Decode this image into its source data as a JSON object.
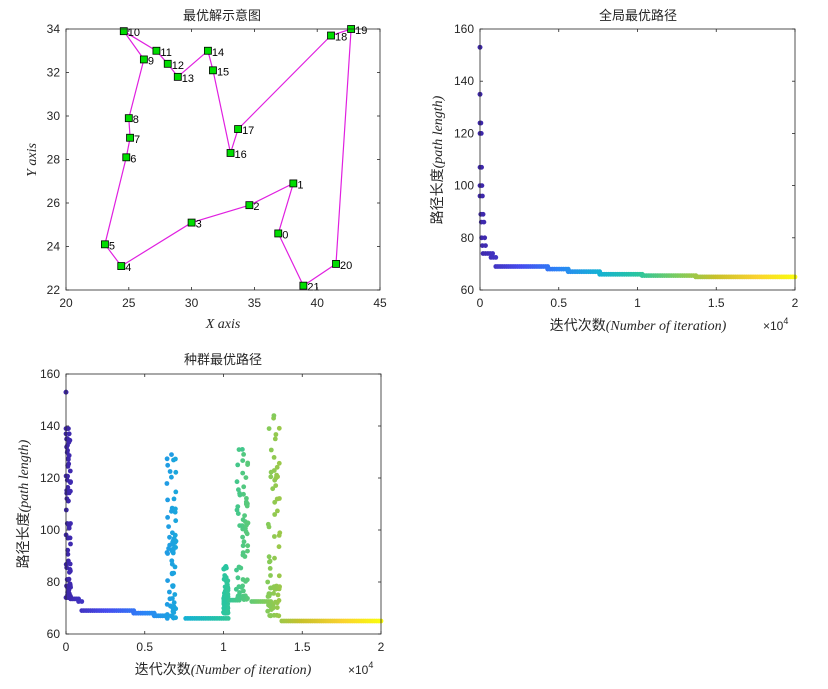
{
  "chart_data": [
    {
      "id": "route",
      "type": "scatter",
      "title": "最优解示意图",
      "xlabel": "X axis",
      "ylabel": "Y axis",
      "xlim": [
        20,
        45
      ],
      "ylim": [
        22,
        34
      ],
      "xticks": [
        20,
        25,
        30,
        35,
        40,
        45
      ],
      "yticks": [
        22,
        24,
        26,
        28,
        30,
        32,
        34
      ],
      "grid": false,
      "colors": {
        "route": "#e020e0",
        "node_fill": "#00dd00",
        "node_edge": "#000000"
      },
      "points": [
        {
          "label": "0",
          "x": 36.9,
          "y": 24.6
        },
        {
          "label": "1",
          "x": 38.1,
          "y": 26.9
        },
        {
          "label": "2",
          "x": 34.6,
          "y": 25.9
        },
        {
          "label": "3",
          "x": 30.0,
          "y": 25.1
        },
        {
          "label": "4",
          "x": 24.4,
          "y": 23.1
        },
        {
          "label": "5",
          "x": 23.1,
          "y": 24.1
        },
        {
          "label": "6",
          "x": 24.8,
          "y": 28.1
        },
        {
          "label": "7",
          "x": 25.1,
          "y": 29.0
        },
        {
          "label": "8",
          "x": 25.0,
          "y": 29.9
        },
        {
          "label": "9",
          "x": 26.2,
          "y": 32.6
        },
        {
          "label": "10",
          "x": 24.6,
          "y": 33.9
        },
        {
          "label": "11",
          "x": 27.2,
          "y": 33.0
        },
        {
          "label": "12",
          "x": 28.1,
          "y": 32.4
        },
        {
          "label": "13",
          "x": 28.9,
          "y": 31.8
        },
        {
          "label": "14",
          "x": 31.3,
          "y": 33.0
        },
        {
          "label": "15",
          "x": 31.7,
          "y": 32.1
        },
        {
          "label": "16",
          "x": 33.1,
          "y": 28.3
        },
        {
          "label": "17",
          "x": 33.7,
          "y": 29.4
        },
        {
          "label": "18",
          "x": 41.1,
          "y": 33.7
        },
        {
          "label": "19",
          "x": 42.7,
          "y": 34.0
        },
        {
          "label": "20",
          "x": 41.5,
          "y": 23.2
        },
        {
          "label": "21",
          "x": 38.9,
          "y": 22.2
        }
      ],
      "route_order": [
        "0",
        "1",
        "2",
        "3",
        "4",
        "5",
        "6",
        "7",
        "8",
        "9",
        "10",
        "11",
        "12",
        "13",
        "14",
        "15",
        "16",
        "17",
        "18",
        "19",
        "20",
        "21"
      ]
    },
    {
      "id": "global",
      "type": "scatter",
      "title": "全局最优路径",
      "xlabel_cn": "迭代次数",
      "xlabel_en": "(Number of iteration)",
      "ylabel_cn": "路径长度",
      "ylabel_en": "(path length)",
      "x_multiplier": "×10",
      "x_multiplier_exp": "4",
      "xlim": [
        0,
        20000
      ],
      "ylim": [
        60,
        160
      ],
      "xticks": [
        0,
        5000,
        10000,
        15000,
        20000
      ],
      "xticklabels": [
        "0",
        "0.5",
        "1",
        "1.5",
        "2"
      ],
      "yticks": [
        60,
        80,
        100,
        120,
        140,
        160
      ],
      "colormap": "parula",
      "segments": [
        {
          "x_start": 0,
          "x_end": 0,
          "y": 153
        },
        {
          "x_start": 0,
          "x_end": 0,
          "y": 135
        },
        {
          "x_start": 0,
          "x_end": 60,
          "y": 124
        },
        {
          "x_start": 0,
          "x_end": 80,
          "y": 120
        },
        {
          "x_start": 0,
          "x_end": 100,
          "y": 107
        },
        {
          "x_start": 0,
          "x_end": 120,
          "y": 100
        },
        {
          "x_start": 0,
          "x_end": 150,
          "y": 96
        },
        {
          "x_start": 50,
          "x_end": 200,
          "y": 89
        },
        {
          "x_start": 80,
          "x_end": 250,
          "y": 86
        },
        {
          "x_start": 100,
          "x_end": 300,
          "y": 80
        },
        {
          "x_start": 150,
          "x_end": 350,
          "y": 77
        },
        {
          "x_start": 200,
          "x_end": 800,
          "y": 74
        },
        {
          "x_start": 700,
          "x_end": 1000,
          "y": 72.5
        },
        {
          "x_start": 1000,
          "x_end": 4300,
          "y": 69
        },
        {
          "x_start": 4300,
          "x_end": 5600,
          "y": 68
        },
        {
          "x_start": 5600,
          "x_end": 7600,
          "y": 67
        },
        {
          "x_start": 7600,
          "x_end": 10300,
          "y": 66
        },
        {
          "x_start": 10300,
          "x_end": 13700,
          "y": 65.5
        },
        {
          "x_start": 13700,
          "x_end": 20000,
          "y": 65
        }
      ]
    },
    {
      "id": "population",
      "type": "scatter",
      "title": "种群最优路径",
      "xlabel_cn": "迭代次数",
      "xlabel_en": "(Number of iteration)",
      "ylabel_cn": "路径长度",
      "ylabel_en": "(path length)",
      "x_multiplier": "×10",
      "x_multiplier_exp": "4",
      "xlim": [
        0,
        20000
      ],
      "ylim": [
        60,
        160
      ],
      "xticks": [
        0,
        5000,
        10000,
        15000,
        20000
      ],
      "xticklabels": [
        "0",
        "0.5",
        "1",
        "1.5",
        "2"
      ],
      "yticks": [
        60,
        80,
        100,
        120,
        140,
        160
      ],
      "colormap": "parula",
      "segments": [
        {
          "x_start": 0,
          "x_end": 0,
          "y": 153
        },
        {
          "x_start": 0,
          "x_end": 60,
          "y": 139
        },
        {
          "x_start": 0,
          "x_end": 200,
          "y": 137
        },
        {
          "x_start": 0,
          "x_end": 300,
          "y": 74
        },
        {
          "x_start": 300,
          "x_end": 800,
          "y": 73.5
        },
        {
          "x_start": 800,
          "x_end": 1000,
          "y": 72.5
        },
        {
          "x_start": 1000,
          "x_end": 4300,
          "y": 69
        },
        {
          "x_start": 4300,
          "x_end": 5600,
          "y": 68
        },
        {
          "x_start": 5600,
          "x_end": 6400,
          "y": 67
        },
        {
          "x_start": 7600,
          "x_end": 10300,
          "y": 66
        },
        {
          "x_start": 10200,
          "x_end": 11000,
          "y": 73
        },
        {
          "x_start": 11800,
          "x_end": 13000,
          "y": 72.5
        },
        {
          "x_start": 13700,
          "x_end": 20000,
          "y": 65
        }
      ],
      "spikes": [
        {
          "x_start": 0,
          "x_end": 300,
          "y_min": 74,
          "y_max": 139
        },
        {
          "x_start": 6400,
          "x_end": 7000,
          "y_min": 66,
          "y_max": 129
        },
        {
          "x_start": 10000,
          "x_end": 10300,
          "y_min": 68,
          "y_max": 86
        },
        {
          "x_start": 10800,
          "x_end": 11600,
          "y_min": 73,
          "y_max": 131
        },
        {
          "x_start": 12800,
          "x_end": 13600,
          "y_min": 67,
          "y_max": 144
        }
      ]
    }
  ]
}
